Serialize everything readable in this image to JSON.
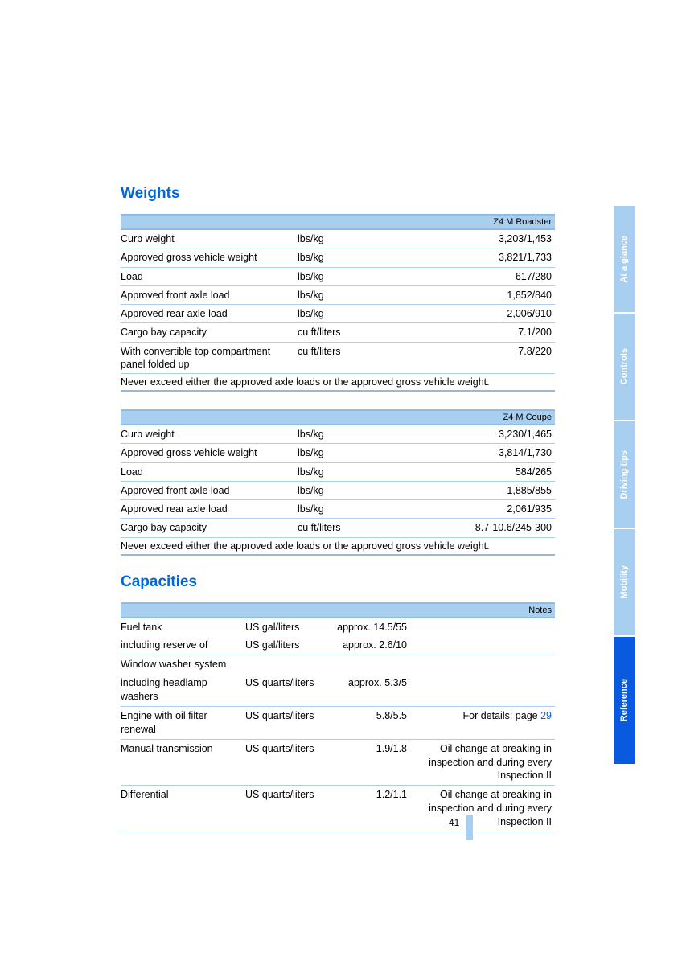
{
  "colors": {
    "heading": "#0066dd",
    "header_bg": "#a9cff0",
    "header_border": "#8fbce6",
    "row_border": "#a9cff0",
    "tab_light_bg": "#a9cff0",
    "tab_light_text": "#ffffff",
    "tab_active_bg": "#0a5ae0",
    "tab_active_text": "#ffffff",
    "link": "#0066dd",
    "text": "#000000",
    "page_bg": "#ffffff"
  },
  "typography": {
    "body_font": "Arial, Helvetica, sans-serif",
    "heading_size_pt": 15,
    "body_size_pt": 9.5,
    "header_label_size_pt": 8
  },
  "headings": {
    "weights": "Weights",
    "capacities": "Capacities"
  },
  "weights_roadster": {
    "header": "Z4 M Roadster",
    "rows": [
      {
        "label": "Curb weight",
        "unit": "lbs/kg",
        "value": "3,203/1,453"
      },
      {
        "label": "Approved gross vehicle weight",
        "unit": "lbs/kg",
        "value": "3,821/1,733"
      },
      {
        "label": "Load",
        "unit": "lbs/kg",
        "value": "617/280"
      },
      {
        "label": "Approved front axle load",
        "unit": "lbs/kg",
        "value": "1,852/840"
      },
      {
        "label": "Approved rear axle load",
        "unit": "lbs/kg",
        "value": "2,006/910"
      },
      {
        "label": "Cargo bay capacity",
        "unit": "cu ft/liters",
        "value": "7.1/200"
      },
      {
        "label": "With convertible top compartment panel folded up",
        "unit": "cu ft/liters",
        "value": "7.8/220"
      }
    ],
    "note": "Never exceed either the approved axle loads or the approved gross vehicle weight."
  },
  "weights_coupe": {
    "header": "Z4 M Coupe",
    "rows": [
      {
        "label": "Curb weight",
        "unit": "lbs/kg",
        "value": "3,230/1,465"
      },
      {
        "label": "Approved gross vehicle weight",
        "unit": "lbs/kg",
        "value": "3,814/1,730"
      },
      {
        "label": "Load",
        "unit": "lbs/kg",
        "value": "584/265"
      },
      {
        "label": "Approved front axle load",
        "unit": "lbs/kg",
        "value": "1,885/855"
      },
      {
        "label": "Approved rear axle load",
        "unit": "lbs/kg",
        "value": "2,061/935"
      },
      {
        "label": "Cargo bay capacity",
        "unit": "cu ft/liters",
        "value": "8.7-10.6/245-300"
      }
    ],
    "note": "Never exceed either the approved axle loads or the approved gross vehicle weight."
  },
  "capacities": {
    "header": "Notes",
    "rows": [
      {
        "label": "Fuel tank",
        "unit": "US gal/liters",
        "value": "approx. 14.5/55",
        "note": "",
        "border": false
      },
      {
        "label": "including reserve of",
        "unit": "US gal/liters",
        "value": "approx. 2.6/10",
        "note": "",
        "border": true
      },
      {
        "label": "Window washer system",
        "unit": "",
        "value": "",
        "note": "",
        "border": false
      },
      {
        "label": "including headlamp washers",
        "unit": "US quarts/liters",
        "value": "approx. 5.3/5",
        "note": "",
        "border": true
      },
      {
        "label": "Engine with oil filter renewal",
        "unit": "US quarts/liters",
        "value": "5.8/5.5",
        "note": "For details: page ",
        "link": "29",
        "border": true
      },
      {
        "label": "Manual transmission",
        "unit": "US quarts/liters",
        "value": "1.9/1.8",
        "note": "Oil change at breaking-in inspection and during every Inspection II",
        "border": true
      },
      {
        "label": "Differential",
        "unit": "US quarts/liters",
        "value": "1.2/1.1",
        "note": "Oil change at breaking-in inspection and during every Inspection II",
        "border": true
      }
    ]
  },
  "page_number": "41",
  "tabs": [
    {
      "label": "At a glance",
      "active": false
    },
    {
      "label": "Controls",
      "active": false
    },
    {
      "label": "Driving tips",
      "active": false
    },
    {
      "label": "Mobility",
      "active": false
    },
    {
      "label": "Reference",
      "active": true
    }
  ]
}
